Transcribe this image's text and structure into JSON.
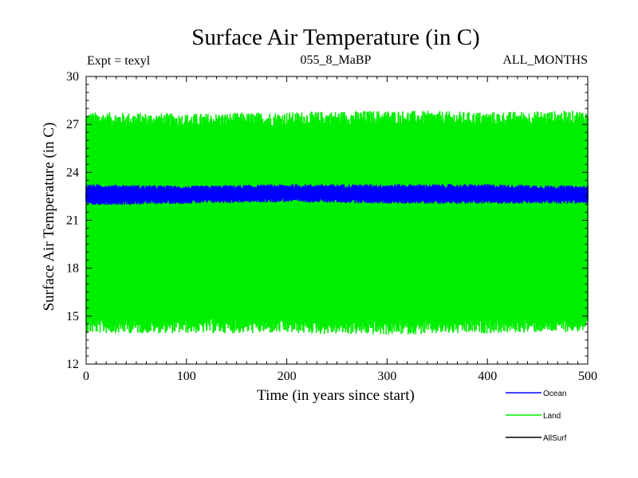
{
  "header": {
    "title": "Surface Air Temperature (in C)",
    "expt": "Expt = texyl",
    "run": "055_8_MaBP",
    "months": "ALL_MONTHS"
  },
  "chart_data": {
    "type": "line",
    "title": "Surface Air Temperature (in C)",
    "xlabel": "Time (in years since start)",
    "ylabel": "Surface Air Temperature (in C)",
    "xlim": [
      0,
      500
    ],
    "ylim": [
      12,
      30
    ],
    "xticks": [
      0,
      100,
      200,
      300,
      400,
      500
    ],
    "yticks": [
      12,
      15,
      18,
      21,
      24,
      27,
      30
    ],
    "grid": false,
    "legend_position": "bottom-right, below plot",
    "series": [
      {
        "name": "Ocean",
        "color": "#0000ff",
        "band": {
          "x": [
            0,
            100,
            200,
            300,
            400,
            500
          ],
          "low": [
            22.1,
            22.2,
            22.3,
            22.2,
            22.2,
            22.2
          ],
          "high": [
            23.1,
            23.0,
            23.1,
            23.1,
            23.1,
            23.0
          ]
        }
      },
      {
        "name": "Land",
        "color": "#00ee00",
        "band": {
          "x": [
            0,
            100,
            200,
            300,
            400,
            500
          ],
          "low": [
            14.5,
            14.5,
            14.5,
            14.4,
            14.5,
            14.6
          ],
          "high": [
            27.2,
            27.1,
            27.2,
            27.3,
            27.2,
            27.3
          ]
        }
      },
      {
        "name": "AllSurf",
        "color": "#000000",
        "band": null
      }
    ]
  }
}
